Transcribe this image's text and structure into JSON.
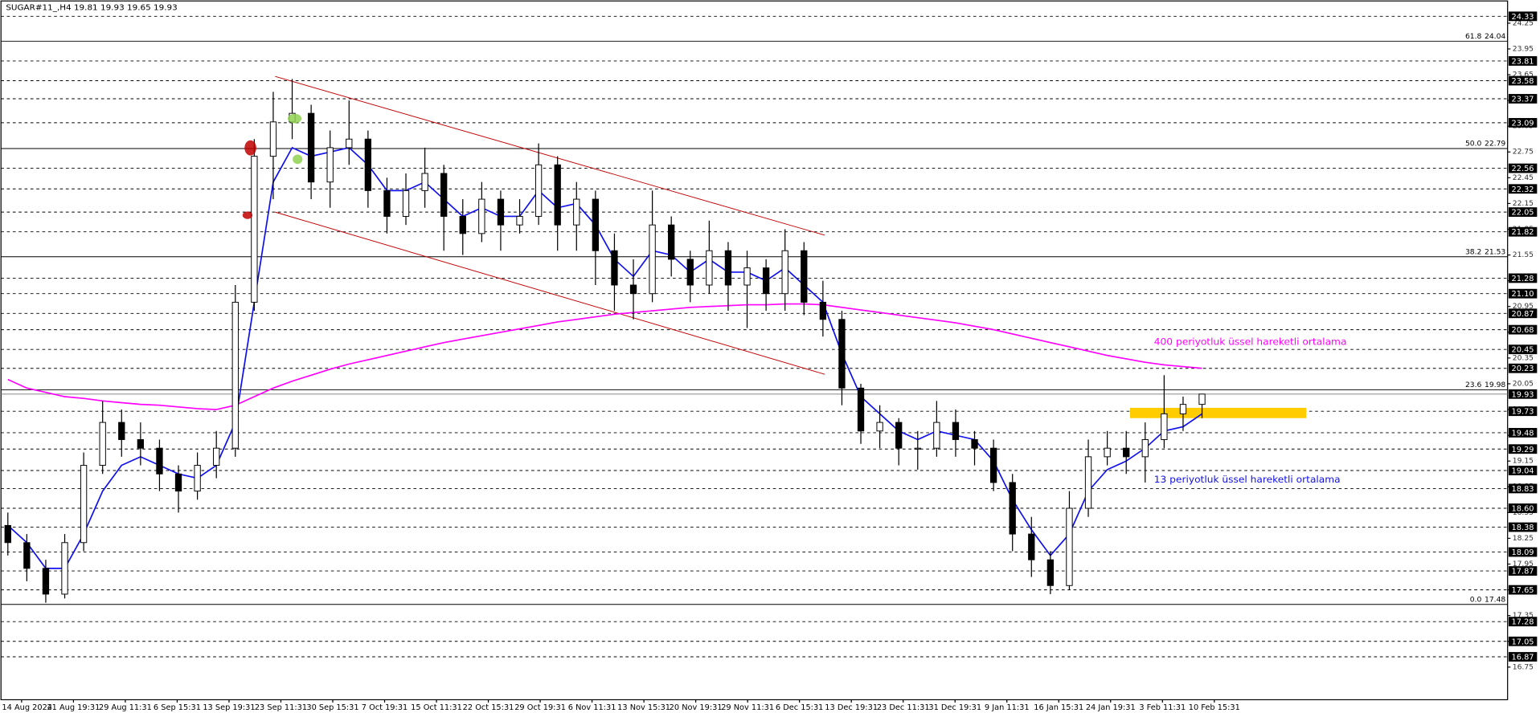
{
  "header": {
    "symbol": "SUGAR#11_,H4",
    "ohlc": [
      19.81,
      19.93,
      19.65,
      19.93
    ]
  },
  "chart_data": {
    "type": "candlestick",
    "ylim": [
      16.37,
      24.52
    ],
    "yticks": [
      24.25,
      23.95,
      23.65,
      23.35,
      23.05,
      22.75,
      22.45,
      22.15,
      21.85,
      21.55,
      21.25,
      20.95,
      20.65,
      20.35,
      20.05,
      19.75,
      19.45,
      19.15,
      18.85,
      18.55,
      18.25,
      17.95,
      17.65,
      17.35,
      17.05,
      16.75
    ],
    "time_labels": [
      "14 Aug 2024",
      "21 Aug 19:31",
      "29 Aug 11:31",
      "6 Sep 15:31",
      "13 Sep 19:31",
      "23 Sep 11:31",
      "30 Sep 15:31",
      "7 Oct 19:31",
      "15 Oct 11:31",
      "22 Oct 15:31",
      "29 Oct 19:31",
      "6 Nov 11:31",
      "13 Nov 15:31",
      "20 Nov 19:31",
      "29 Nov 11:31",
      "6 Dec 15:31",
      "13 Dec 19:31",
      "23 Dec 11:31",
      "31 Dec 19:31",
      "9 Jan 11:31",
      "16 Jan 15:31",
      "24 Jan 19:31",
      "3 Feb 11:31",
      "10 Feb 15:31"
    ],
    "open": [
      18.4,
      18.2,
      17.9,
      17.6,
      18.2,
      19.1,
      19.6,
      19.4,
      19.3,
      19.0,
      18.8,
      19.1,
      19.3,
      21.0,
      22.7,
      23.1,
      23.2,
      22.4,
      22.8,
      22.9,
      22.3,
      22.0,
      22.3,
      22.5,
      22.0,
      21.8,
      22.2,
      21.9,
      22.0,
      22.6,
      21.9,
      22.2,
      21.6,
      21.2,
      21.1,
      21.9,
      21.5,
      21.2,
      21.6,
      21.2,
      21.4,
      21.1,
      21.6,
      21.0,
      20.8,
      20.0,
      19.5,
      19.6,
      19.3,
      19.3,
      19.6,
      19.4,
      19.3,
      18.9,
      18.3,
      18.0,
      17.7,
      18.6,
      19.2,
      19.3,
      19.2,
      19.4,
      19.7,
      19.81
    ],
    "high": [
      18.55,
      18.3,
      18.0,
      18.3,
      19.25,
      19.85,
      19.75,
      19.6,
      19.4,
      19.1,
      19.25,
      19.5,
      21.2,
      22.9,
      23.45,
      23.6,
      23.3,
      23.0,
      23.35,
      23.0,
      22.45,
      22.5,
      22.8,
      22.6,
      22.2,
      22.4,
      22.3,
      22.2,
      22.85,
      22.7,
      22.4,
      22.3,
      21.8,
      21.5,
      22.3,
      22.0,
      21.6,
      21.95,
      21.7,
      21.6,
      21.5,
      21.85,
      21.7,
      21.25,
      20.9,
      20.05,
      19.8,
      19.65,
      19.5,
      19.85,
      19.75,
      19.5,
      19.4,
      19.0,
      18.5,
      18.1,
      18.8,
      19.4,
      19.5,
      19.5,
      19.6,
      20.15,
      19.9,
      19.93
    ],
    "low": [
      18.05,
      17.75,
      17.5,
      17.55,
      18.1,
      19.0,
      19.2,
      19.1,
      18.8,
      18.55,
      18.7,
      18.95,
      19.2,
      20.9,
      22.2,
      22.9,
      22.2,
      22.1,
      22.6,
      22.1,
      21.8,
      21.9,
      22.1,
      21.6,
      21.55,
      21.7,
      21.6,
      21.8,
      21.9,
      21.6,
      21.6,
      21.2,
      20.9,
      20.8,
      21.0,
      21.3,
      21.0,
      21.1,
      20.9,
      20.7,
      20.9,
      20.9,
      20.85,
      20.6,
      19.8,
      19.35,
      19.3,
      19.1,
      19.05,
      19.2,
      19.2,
      19.1,
      18.8,
      18.1,
      17.8,
      17.6,
      17.65,
      18.5,
      19.1,
      19.0,
      18.9,
      19.3,
      19.5,
      19.65
    ],
    "close": [
      18.2,
      17.9,
      17.6,
      18.2,
      19.1,
      19.6,
      19.4,
      19.3,
      19.0,
      18.8,
      19.1,
      19.3,
      21.0,
      22.7,
      23.1,
      23.2,
      22.4,
      22.8,
      22.9,
      22.3,
      22.0,
      22.3,
      22.5,
      22.0,
      21.8,
      22.2,
      21.9,
      22.0,
      22.6,
      21.9,
      22.2,
      21.6,
      21.2,
      21.1,
      21.9,
      21.5,
      21.2,
      21.6,
      21.2,
      21.4,
      21.1,
      21.6,
      21.0,
      20.8,
      20.0,
      19.5,
      19.6,
      19.3,
      19.3,
      19.6,
      19.4,
      19.3,
      18.9,
      18.3,
      18.0,
      17.7,
      18.6,
      19.2,
      19.3,
      19.2,
      19.4,
      19.7,
      19.81,
      19.93
    ],
    "lines": [
      {
        "color": "#ff00ff",
        "values": [
          20.1,
          20.0,
          19.95,
          19.9,
          19.88,
          19.85,
          19.83,
          19.81,
          19.8,
          19.78,
          19.76,
          19.75,
          19.8,
          19.9,
          20.0,
          20.08,
          20.15,
          20.22,
          20.28,
          20.33,
          20.38,
          20.43,
          20.48,
          20.53,
          20.57,
          20.61,
          20.65,
          20.69,
          20.73,
          20.77,
          20.8,
          20.83,
          20.86,
          20.88,
          20.9,
          20.92,
          20.94,
          20.95,
          20.96,
          20.97,
          20.97,
          20.98,
          20.98,
          20.97,
          20.94,
          20.91,
          20.88,
          20.85,
          20.82,
          20.79,
          20.76,
          20.72,
          20.68,
          20.63,
          20.58,
          20.53,
          20.48,
          20.43,
          20.38,
          20.34,
          20.3,
          20.27,
          20.25,
          20.23
        ]
      },
      {
        "color": "#1010ee",
        "values": [
          18.4,
          18.2,
          17.9,
          17.9,
          18.3,
          18.8,
          19.1,
          19.2,
          19.1,
          19.0,
          18.95,
          19.1,
          19.6,
          21.0,
          22.4,
          22.8,
          22.7,
          22.75,
          22.8,
          22.6,
          22.3,
          22.3,
          22.4,
          22.2,
          22.0,
          22.1,
          22.0,
          22.0,
          22.3,
          22.1,
          22.15,
          21.9,
          21.5,
          21.3,
          21.6,
          21.55,
          21.35,
          21.5,
          21.35,
          21.35,
          21.25,
          21.4,
          21.2,
          21.0,
          20.4,
          19.9,
          19.7,
          19.5,
          19.4,
          19.5,
          19.45,
          19.4,
          19.15,
          18.7,
          18.35,
          18.05,
          18.3,
          18.8,
          19.05,
          19.15,
          19.3,
          19.5,
          19.55,
          19.7
        ]
      }
    ],
    "trendlines": [
      {
        "from": [
          14.1,
          23.63
        ],
        "to": [
          43.1,
          21.78
        ]
      },
      {
        "from": [
          14.1,
          22.05
        ],
        "to": [
          43.1,
          20.16
        ]
      }
    ],
    "zone": {
      "from": 59.2,
      "to": 68.5,
      "top": 19.77,
      "bottom": 19.65,
      "color": "#ffcc00"
    },
    "levels": [
      24.33,
      23.81,
      23.58,
      23.37,
      23.09,
      22.56,
      22.32,
      22.05,
      21.82,
      21.28,
      {
        "value": 21.1,
        "label": "21.10"
      },
      20.87,
      20.68,
      20.45,
      20.23,
      19.73,
      19.48,
      19.29,
      19.04,
      18.83,
      {
        "value": 18.6,
        "label": "18.60"
      },
      18.38,
      18.09,
      17.87,
      17.65,
      17.28,
      17.05,
      16.87
    ],
    "current": 19.93,
    "fib": [
      {
        "ratio": "61.8",
        "value": 24.04
      },
      {
        "ratio": "50.0",
        "value": 22.79
      },
      {
        "ratio": "38.2",
        "value": 21.53
      },
      {
        "ratio": "23.6",
        "value": 19.98
      },
      {
        "ratio": "0.0",
        "value": 17.48
      }
    ],
    "annotations": [
      "400 periyotluk üssel hareketli ortalama",
      "13 periyotluk üssel hareketli ortalama"
    ]
  }
}
